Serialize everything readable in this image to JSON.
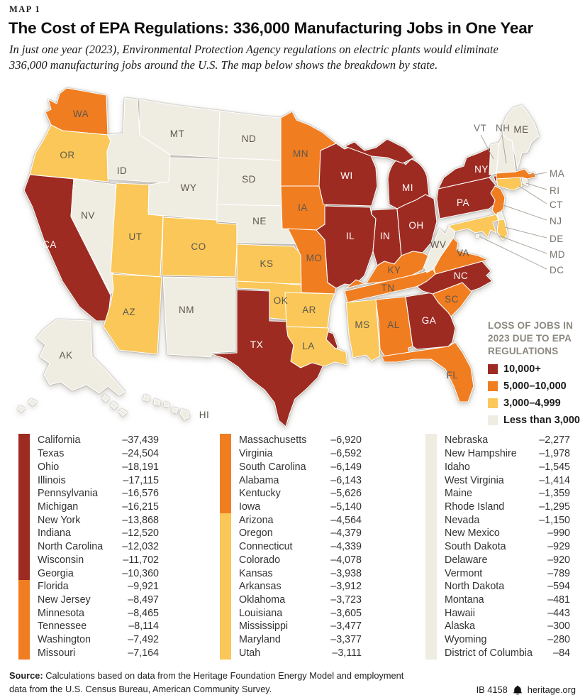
{
  "header": {
    "kicker": "MAP 1",
    "title": "The Cost of EPA Regulations: 336,000 Manufacturing Jobs in One Year",
    "subtitle": "In just one year (2023), Environmental Protection Agency regulations on electric plants would eliminate\n336,000 manufacturing jobs around the U.S. The map below shows the breakdown by state."
  },
  "map": {
    "label_color": "#5C584E",
    "label_on_dark": "#FFFFFF",
    "callout_color": "#76716A"
  },
  "footer": {
    "source_label": "Source:",
    "source_text": "Calculations based on data from the Heritage Foundation Energy Model and employment data from the U.S. Census Bureau, American Community Survey.",
    "report_id": "IB 4158",
    "bell_icon": "liberty-bell",
    "site": "heritage.org"
  },
  "chart_data": {
    "type": "heatmap",
    "subtype": "us_choropleth_map",
    "title": "The Cost of EPA Regulations: 336,000 Manufacturing Jobs in One Year",
    "unit": "manufacturing jobs lost in 2023",
    "total": -336000,
    "legend_title": "LOSS OF JOBS IN\n2023 DUE TO EPA\nREGULATIONS",
    "legend_position": "right-middle",
    "bins": [
      {
        "label": "10,000+",
        "color": "#9E2B22"
      },
      {
        "label": "5,000–10,000",
        "color": "#F17D21"
      },
      {
        "label": "3,000–4,999",
        "color": "#FAC758"
      },
      {
        "label": "Less than 3,000",
        "color": "#EFECE2"
      }
    ],
    "states": [
      {
        "name": "California",
        "abbr": "CA",
        "value": -37439,
        "display": "–37,439",
        "bin": 0
      },
      {
        "name": "Texas",
        "abbr": "TX",
        "value": -24504,
        "display": "–24,504",
        "bin": 0
      },
      {
        "name": "Ohio",
        "abbr": "OH",
        "value": -18191,
        "display": "–18,191",
        "bin": 0
      },
      {
        "name": "Illinois",
        "abbr": "IL",
        "value": -17115,
        "display": "–17,115",
        "bin": 0
      },
      {
        "name": "Pennsylvania",
        "abbr": "PA",
        "value": -16576,
        "display": "–16,576",
        "bin": 0
      },
      {
        "name": "Michigan",
        "abbr": "MI",
        "value": -16215,
        "display": "–16,215",
        "bin": 0
      },
      {
        "name": "New York",
        "abbr": "NY",
        "value": -13868,
        "display": "–13,868",
        "bin": 0
      },
      {
        "name": "Indiana",
        "abbr": "IN",
        "value": -12520,
        "display": "–12,520",
        "bin": 0
      },
      {
        "name": "North Carolina",
        "abbr": "NC",
        "value": -12032,
        "display": "–12,032",
        "bin": 0
      },
      {
        "name": "Wisconsin",
        "abbr": "WI",
        "value": -11702,
        "display": "–11,702",
        "bin": 0
      },
      {
        "name": "Georgia",
        "abbr": "GA",
        "value": -10360,
        "display": "–10,360",
        "bin": 0
      },
      {
        "name": "Florida",
        "abbr": "FL",
        "value": -9921,
        "display": "–9,921",
        "bin": 1
      },
      {
        "name": "New Jersey",
        "abbr": "NJ",
        "value": -8497,
        "display": "–8,497",
        "bin": 1
      },
      {
        "name": "Minnesota",
        "abbr": "MN",
        "value": -8465,
        "display": "–8,465",
        "bin": 1
      },
      {
        "name": "Tennessee",
        "abbr": "TN",
        "value": -8114,
        "display": "–8,114",
        "bin": 1
      },
      {
        "name": "Washington",
        "abbr": "WA",
        "value": -7492,
        "display": "–7,492",
        "bin": 1
      },
      {
        "name": "Missouri",
        "abbr": "MO",
        "value": -7164,
        "display": "–7,164",
        "bin": 1
      },
      {
        "name": "Massachusetts",
        "abbr": "MA",
        "value": -6920,
        "display": "–6,920",
        "bin": 1
      },
      {
        "name": "Virginia",
        "abbr": "VA",
        "value": -6592,
        "display": "–6,592",
        "bin": 1
      },
      {
        "name": "South Carolina",
        "abbr": "SC",
        "value": -6149,
        "display": "–6,149",
        "bin": 1
      },
      {
        "name": "Alabama",
        "abbr": "AL",
        "value": -6143,
        "display": "–6,143",
        "bin": 1
      },
      {
        "name": "Kentucky",
        "abbr": "KY",
        "value": -5626,
        "display": "–5,626",
        "bin": 1
      },
      {
        "name": "Iowa",
        "abbr": "IA",
        "value": -5140,
        "display": "–5,140",
        "bin": 1
      },
      {
        "name": "Arizona",
        "abbr": "AZ",
        "value": -4564,
        "display": "–4,564",
        "bin": 2
      },
      {
        "name": "Oregon",
        "abbr": "OR",
        "value": -4379,
        "display": "–4,379",
        "bin": 2
      },
      {
        "name": "Connecticut",
        "abbr": "CT",
        "value": -4339,
        "display": "–4,339",
        "bin": 2
      },
      {
        "name": "Colorado",
        "abbr": "CO",
        "value": -4078,
        "display": "–4,078",
        "bin": 2
      },
      {
        "name": "Kansas",
        "abbr": "KS",
        "value": -3938,
        "display": "–3,938",
        "bin": 2
      },
      {
        "name": "Arkansas",
        "abbr": "AR",
        "value": -3912,
        "display": "–3,912",
        "bin": 2
      },
      {
        "name": "Oklahoma",
        "abbr": "OK",
        "value": -3723,
        "display": "–3,723",
        "bin": 2
      },
      {
        "name": "Louisiana",
        "abbr": "LA",
        "value": -3605,
        "display": "–3,605",
        "bin": 2
      },
      {
        "name": "Mississippi",
        "abbr": "MS",
        "value": -3477,
        "display": "–3,477",
        "bin": 2
      },
      {
        "name": "Maryland",
        "abbr": "MD",
        "value": -3377,
        "display": "–3,377",
        "bin": 2
      },
      {
        "name": "Utah",
        "abbr": "UT",
        "value": -3111,
        "display": "–3,111",
        "bin": 2
      },
      {
        "name": "Nebraska",
        "abbr": "NE",
        "value": -2277,
        "display": "–2,277",
        "bin": 3
      },
      {
        "name": "New Hampshire",
        "abbr": "NH",
        "value": -1978,
        "display": "–1,978",
        "bin": 3
      },
      {
        "name": "Idaho",
        "abbr": "ID",
        "value": -1545,
        "display": "–1,545",
        "bin": 3
      },
      {
        "name": "West Virginia",
        "abbr": "WV",
        "value": -1414,
        "display": "–1,414",
        "bin": 3
      },
      {
        "name": "Maine",
        "abbr": "ME",
        "value": -1359,
        "display": "–1,359",
        "bin": 3
      },
      {
        "name": "Rhode Island",
        "abbr": "RI",
        "value": -1295,
        "display": "–1,295",
        "bin": 3
      },
      {
        "name": "Nevada",
        "abbr": "NV",
        "value": -1150,
        "display": "–1,150",
        "bin": 3
      },
      {
        "name": "New Mexico",
        "abbr": "NM",
        "value": -990,
        "display": "–990",
        "bin": 3
      },
      {
        "name": "South Dakota",
        "abbr": "SD",
        "value": -929,
        "display": "–929",
        "bin": 3
      },
      {
        "name": "Delaware",
        "abbr": "DE",
        "value": -920,
        "display": "–920",
        "bin": 3
      },
      {
        "name": "Vermont",
        "abbr": "VT",
        "value": -789,
        "display": "–789",
        "bin": 3
      },
      {
        "name": "North Dakota",
        "abbr": "ND",
        "value": -594,
        "display": "–594",
        "bin": 3
      },
      {
        "name": "Montana",
        "abbr": "MT",
        "value": -481,
        "display": "–481",
        "bin": 3
      },
      {
        "name": "Hawaii",
        "abbr": "HI",
        "value": -443,
        "display": "–443",
        "bin": 3
      },
      {
        "name": "Alaska",
        "abbr": "AK",
        "value": -300,
        "display": "–300",
        "bin": 3
      },
      {
        "name": "Wyoming",
        "abbr": "WY",
        "value": -280,
        "display": "–280",
        "bin": 3
      },
      {
        "name": "District of Columbia",
        "abbr": "DC",
        "value": -84,
        "display": "–84",
        "bin": 3
      }
    ]
  }
}
